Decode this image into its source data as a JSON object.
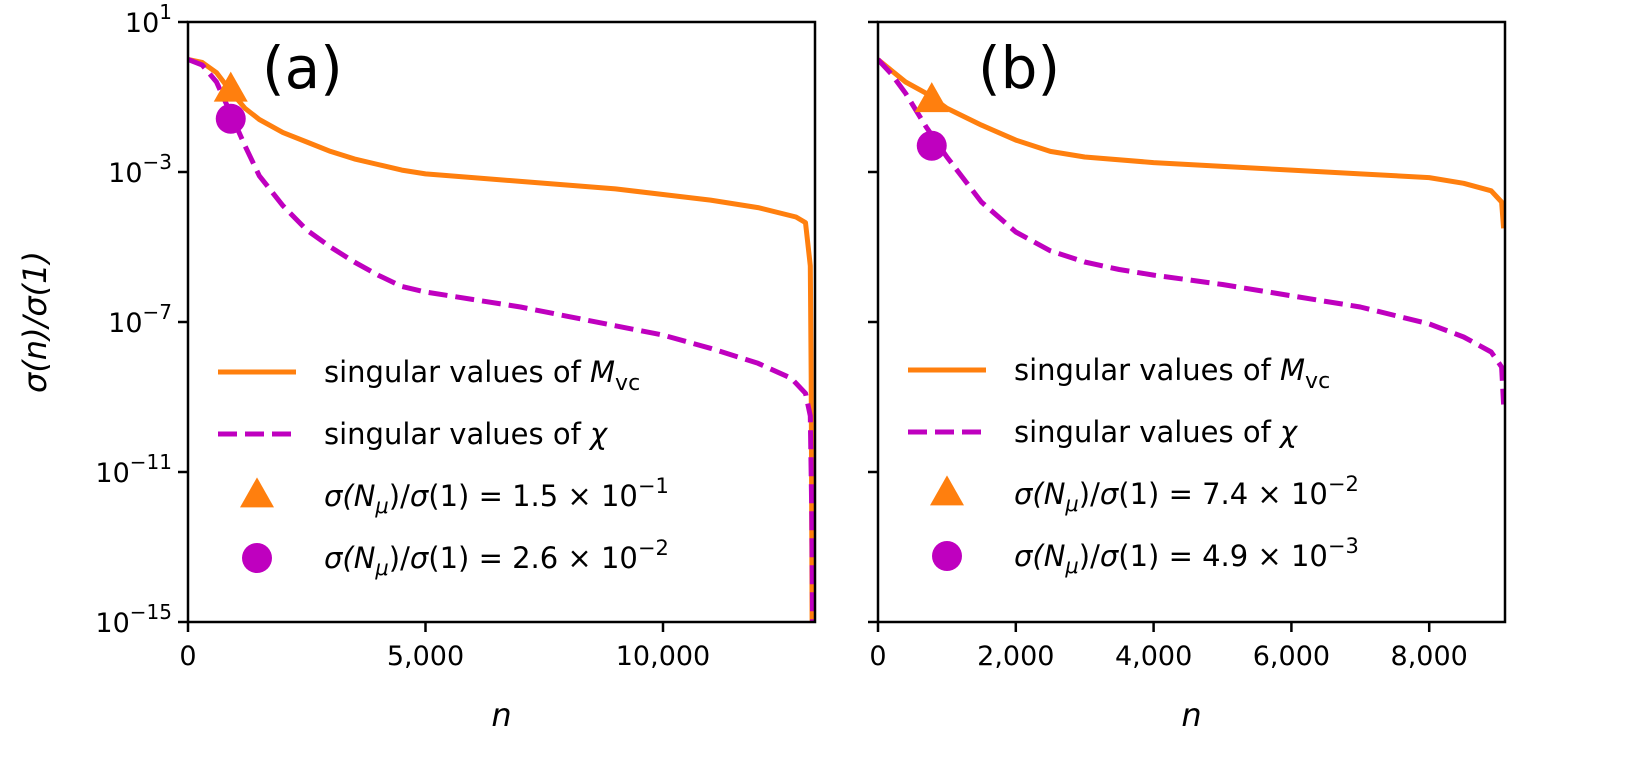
{
  "chart_data": [
    {
      "type": "line",
      "panel_label": "(a)",
      "xlabel": "n",
      "ylabel": "σ(n)/σ(1)",
      "yscale": "log",
      "xlim": [
        0,
        13200
      ],
      "ylim_exponent": [
        -15,
        1
      ],
      "x_ticks": [
        {
          "value": 0,
          "label": "0"
        },
        {
          "value": 5000,
          "label": "5,000"
        },
        {
          "value": 10000,
          "label": "10,000"
        }
      ],
      "y_ticks": [
        {
          "exp": 1,
          "base": "10",
          "sup": "1"
        },
        {
          "exp": -3,
          "base": "10",
          "sup": "−3"
        },
        {
          "exp": -7,
          "base": "10",
          "sup": "−7"
        },
        {
          "exp": -11,
          "base": "10",
          "sup": "−11"
        },
        {
          "exp": -15,
          "base": "10",
          "sup": "−15"
        }
      ],
      "legend_position": "lower-left",
      "series": [
        {
          "name": "singular values of M_vc",
          "legend_prefix": "singular values of ",
          "legend_symbol": "M",
          "legend_sub": "vc",
          "style": "solid",
          "color": "#ff7f0e",
          "points": [
            [
              0,
              0.0
            ],
            [
              300,
              -0.08
            ],
            [
              600,
              -0.35
            ],
            [
              900,
              -0.85
            ],
            [
              1200,
              -1.3
            ],
            [
              1500,
              -1.6
            ],
            [
              2000,
              -1.95
            ],
            [
              2500,
              -2.2
            ],
            [
              3000,
              -2.45
            ],
            [
              3500,
              -2.65
            ],
            [
              4000,
              -2.8
            ],
            [
              4500,
              -2.95
            ],
            [
              5000,
              -3.05
            ],
            [
              6000,
              -3.15
            ],
            [
              7000,
              -3.25
            ],
            [
              8000,
              -3.35
            ],
            [
              9000,
              -3.45
            ],
            [
              10000,
              -3.6
            ],
            [
              11000,
              -3.75
            ],
            [
              12000,
              -3.95
            ],
            [
              12800,
              -4.2
            ],
            [
              13000,
              -4.35
            ],
            [
              13100,
              -5.5
            ],
            [
              13120,
              -8.5
            ],
            [
              13140,
              -15
            ]
          ]
        },
        {
          "name": "singular values of χ",
          "legend_prefix": "singular values of ",
          "legend_symbol": "χ",
          "legend_sub": "",
          "style": "dashed",
          "color": "#bf00bf",
          "points": [
            [
              0,
              0.0
            ],
            [
              300,
              -0.15
            ],
            [
              600,
              -0.6
            ],
            [
              900,
              -1.45
            ],
            [
              1200,
              -2.3
            ],
            [
              1500,
              -3.1
            ],
            [
              2000,
              -3.9
            ],
            [
              2500,
              -4.55
            ],
            [
              3000,
              -5.0
            ],
            [
              3500,
              -5.4
            ],
            [
              4000,
              -5.75
            ],
            [
              4500,
              -6.05
            ],
            [
              5000,
              -6.2
            ],
            [
              6000,
              -6.4
            ],
            [
              7000,
              -6.6
            ],
            [
              8000,
              -6.85
            ],
            [
              9000,
              -7.1
            ],
            [
              10000,
              -7.35
            ],
            [
              11000,
              -7.7
            ],
            [
              12000,
              -8.1
            ],
            [
              12700,
              -8.5
            ],
            [
              13000,
              -8.9
            ],
            [
              13100,
              -9.5
            ],
            [
              13130,
              -12
            ],
            [
              13150,
              -15
            ]
          ]
        }
      ],
      "markers": [
        {
          "shape": "triangle",
          "color": "#ff7f0e",
          "x": 900,
          "y_exp": -0.82,
          "legend_text": "σ(N_μ)/σ(1) = 1.5 × 10^−1",
          "legend_value": "1.5",
          "legend_sup": "−1"
        },
        {
          "shape": "circle",
          "color": "#bf00bf",
          "x": 900,
          "y_exp": -1.58,
          "legend_text": "σ(N_μ)/σ(1) = 2.6 × 10^−2",
          "legend_value": "2.6",
          "legend_sup": "−2"
        }
      ]
    },
    {
      "type": "line",
      "panel_label": "(b)",
      "xlabel": "n",
      "ylabel": "",
      "yscale": "log",
      "xlim": [
        0,
        9100
      ],
      "ylim_exponent": [
        -15,
        1
      ],
      "x_ticks": [
        {
          "value": 0,
          "label": "0"
        },
        {
          "value": 2000,
          "label": "2,000"
        },
        {
          "value": 4000,
          "label": "4,000"
        },
        {
          "value": 6000,
          "label": "6,000"
        },
        {
          "value": 8000,
          "label": "8,000"
        }
      ],
      "y_ticks": [
        {
          "exp": 1,
          "base": "",
          "sup": ""
        },
        {
          "exp": -3,
          "base": "",
          "sup": ""
        },
        {
          "exp": -7,
          "base": "",
          "sup": ""
        },
        {
          "exp": -11,
          "base": "",
          "sup": ""
        },
        {
          "exp": -15,
          "base": "",
          "sup": ""
        }
      ],
      "legend_position": "lower-left",
      "series": [
        {
          "name": "singular values of M_vc",
          "legend_prefix": "singular values of ",
          "legend_symbol": "M",
          "legend_sub": "vc",
          "style": "solid",
          "color": "#ff7f0e",
          "points": [
            [
              0,
              0.0
            ],
            [
              200,
              -0.3
            ],
            [
              400,
              -0.6
            ],
            [
              700,
              -0.9
            ],
            [
              1000,
              -1.3
            ],
            [
              1500,
              -1.75
            ],
            [
              2000,
              -2.15
            ],
            [
              2500,
              -2.45
            ],
            [
              3000,
              -2.6
            ],
            [
              4000,
              -2.75
            ],
            [
              5000,
              -2.85
            ],
            [
              6000,
              -2.95
            ],
            [
              7000,
              -3.05
            ],
            [
              8000,
              -3.15
            ],
            [
              8500,
              -3.3
            ],
            [
              8900,
              -3.5
            ],
            [
              9050,
              -3.8
            ],
            [
              9080,
              -4.5
            ]
          ]
        },
        {
          "name": "singular values of χ",
          "legend_prefix": "singular values of ",
          "legend_symbol": "χ",
          "legend_sub": "",
          "style": "dashed",
          "color": "#bf00bf",
          "points": [
            [
              0,
              0.0
            ],
            [
              200,
              -0.4
            ],
            [
              400,
              -0.9
            ],
            [
              700,
              -1.8
            ],
            [
              1000,
              -2.6
            ],
            [
              1500,
              -3.8
            ],
            [
              2000,
              -4.6
            ],
            [
              2500,
              -5.1
            ],
            [
              3000,
              -5.4
            ],
            [
              3500,
              -5.6
            ],
            [
              4000,
              -5.75
            ],
            [
              5000,
              -6.0
            ],
            [
              6000,
              -6.3
            ],
            [
              7000,
              -6.6
            ],
            [
              8000,
              -7.05
            ],
            [
              8500,
              -7.4
            ],
            [
              8900,
              -7.8
            ],
            [
              9050,
              -8.2
            ],
            [
              9080,
              -9.2
            ]
          ]
        }
      ],
      "markers": [
        {
          "shape": "triangle",
          "color": "#ff7f0e",
          "x": 780,
          "y_exp": -1.1,
          "legend_text": "σ(N_μ)/σ(1) = 7.4 × 10^−2",
          "legend_value": "7.4",
          "legend_sup": "−2"
        },
        {
          "shape": "circle",
          "color": "#bf00bf",
          "x": 780,
          "y_exp": -2.3,
          "legend_text": "σ(N_μ)/σ(1) = 4.9 × 10^−3",
          "legend_value": "4.9",
          "legend_sup": "−3"
        }
      ]
    }
  ]
}
